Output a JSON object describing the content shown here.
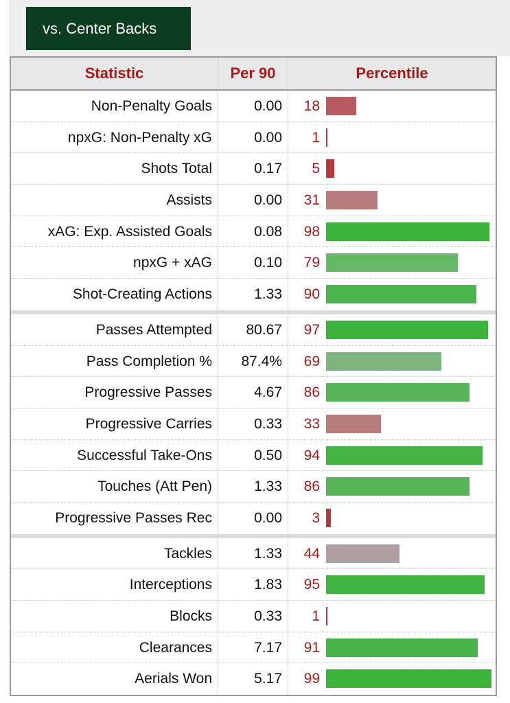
{
  "tab": {
    "label": "vs. Center Backs"
  },
  "header": {
    "statistic": "Statistic",
    "per90": "Per 90",
    "percentile": "Percentile"
  },
  "colors": {
    "tab_bg": "#0b3d20",
    "header_text": "#a61a1a"
  },
  "groups": [
    [
      {
        "stat": "Non-Penalty Goals",
        "per90": "0.00",
        "pct": "18",
        "pct_value": 18,
        "color": "#b85a5f"
      },
      {
        "stat": "npxG: Non-Penalty xG",
        "per90": "0.00",
        "pct": "1",
        "pct_value": 1,
        "color": "#b33a3e"
      },
      {
        "stat": "Shots Total",
        "per90": "0.17",
        "pct": "5",
        "pct_value": 5,
        "color": "#b33a3e"
      },
      {
        "stat": "Assists",
        "per90": "0.00",
        "pct": "31",
        "pct_value": 31,
        "color": "#b67c7e"
      },
      {
        "stat": "xAG: Exp. Assisted Goals",
        "per90": "0.08",
        "pct": "98",
        "pct_value": 98,
        "color": "#3cb43c"
      },
      {
        "stat": "npxG + xAG",
        "per90": "0.10",
        "pct": "79",
        "pct_value": 79,
        "color": "#67b867"
      },
      {
        "stat": "Shot-Creating Actions",
        "per90": "1.33",
        "pct": "90",
        "pct_value": 90,
        "color": "#4cb44c"
      }
    ],
    [
      {
        "stat": "Passes Attempted",
        "per90": "80.67",
        "pct": "97",
        "pct_value": 97,
        "color": "#3cb43c"
      },
      {
        "stat": "Pass Completion %",
        "per90": "87.4%",
        "pct": "69",
        "pct_value": 69,
        "color": "#7db57f"
      },
      {
        "stat": "Progressive Passes",
        "per90": "4.67",
        "pct": "86",
        "pct_value": 86,
        "color": "#57b457"
      },
      {
        "stat": "Progressive Carries",
        "per90": "0.33",
        "pct": "33",
        "pct_value": 33,
        "color": "#b67c7e"
      },
      {
        "stat": "Successful Take-Ons",
        "per90": "0.50",
        "pct": "94",
        "pct_value": 94,
        "color": "#44b444"
      },
      {
        "stat": "Touches (Att Pen)",
        "per90": "1.33",
        "pct": "86",
        "pct_value": 86,
        "color": "#57b457"
      },
      {
        "stat": "Progressive Passes Rec",
        "per90": "0.00",
        "pct": "3",
        "pct_value": 3,
        "color": "#b33a3e"
      }
    ],
    [
      {
        "stat": "Tackles",
        "per90": "1.33",
        "pct": "44",
        "pct_value": 44,
        "color": "#b09fa0"
      },
      {
        "stat": "Interceptions",
        "per90": "1.83",
        "pct": "95",
        "pct_value": 95,
        "color": "#42b442"
      },
      {
        "stat": "Blocks",
        "per90": "0.33",
        "pct": "1",
        "pct_value": 1,
        "color": "#b33a3e"
      },
      {
        "stat": "Clearances",
        "per90": "7.17",
        "pct": "91",
        "pct_value": 91,
        "color": "#4ab44a"
      },
      {
        "stat": "Aerials Won",
        "per90": "5.17",
        "pct": "99",
        "pct_value": 99,
        "color": "#3cb43c"
      }
    ]
  ]
}
